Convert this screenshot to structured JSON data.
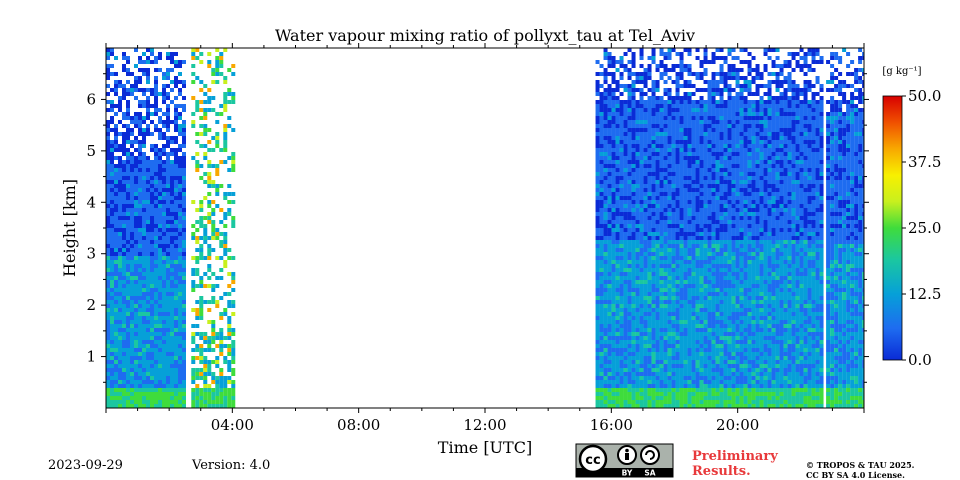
{
  "chart_data": {
    "type": "heatmap",
    "title": "Water vapour mixing ratio of pollyxt_tau at Tel_Aviv",
    "xlabel": "Time [UTC]",
    "ylabel": "Height [km]",
    "x_unit": "hours UTC",
    "xlim": [
      0,
      24
    ],
    "ylim": [
      0,
      7
    ],
    "x_tick_labels": [
      "04:00",
      "08:00",
      "12:00",
      "16:00",
      "20:00"
    ],
    "x_tick_values": [
      4,
      8,
      12,
      16,
      20
    ],
    "y_tick_labels": [
      "1",
      "2",
      "3",
      "4",
      "5",
      "6"
    ],
    "y_tick_values": [
      1,
      2,
      3,
      4,
      5,
      6
    ],
    "colorbar": {
      "label": "[g kg⁻¹]",
      "range": [
        0,
        50
      ],
      "tick_labels": [
        "0.0",
        "12.5",
        "25.0",
        "37.5",
        "50.0"
      ],
      "tick_values": [
        0,
        12.5,
        25,
        37.5,
        50
      ],
      "colors": [
        "#0a2bd6",
        "#1e6cf0",
        "#06a0d8",
        "#1bc7a0",
        "#3fdc3c",
        "#c8f01e",
        "#f8f000",
        "#f8a800",
        "#f05000",
        "#d80000"
      ]
    },
    "data_blocks": [
      {
        "start": 0.0,
        "end": 2.5,
        "top_km": 7.0,
        "dense_top_km": 4.8,
        "moist_layer_top_km": 3.0,
        "surface_layer_top_km": 0.42,
        "sparse": false
      },
      {
        "start": 2.7,
        "end": 4.0,
        "top_km": 7.0,
        "dense_top_km": 1.5,
        "moist_layer_top_km": 1.5,
        "surface_layer_top_km": 0.42,
        "sparse": true
      },
      {
        "start": 15.5,
        "end": 22.6,
        "top_km": 7.0,
        "dense_top_km": 6.0,
        "moist_layer_top_km": 3.3,
        "surface_layer_top_km": 0.42,
        "sparse": false
      },
      {
        "start": 22.8,
        "end": 24.0,
        "top_km": 7.0,
        "dense_top_km": 5.8,
        "moist_layer_top_km": 3.2,
        "surface_layer_top_km": 0.42,
        "sparse": false
      }
    ]
  },
  "footer": {
    "date": "2023-09-29",
    "version": "Version: 4.0",
    "license_badge": {
      "cc": "cc",
      "by": "BY",
      "sa": "SA"
    },
    "preliminary_line1": "Preliminary",
    "preliminary_line2": "Results.",
    "copyright_line1": "© TROPOS & TAU 2025.",
    "copyright_line2": "CC BY SA 4.0 License."
  }
}
